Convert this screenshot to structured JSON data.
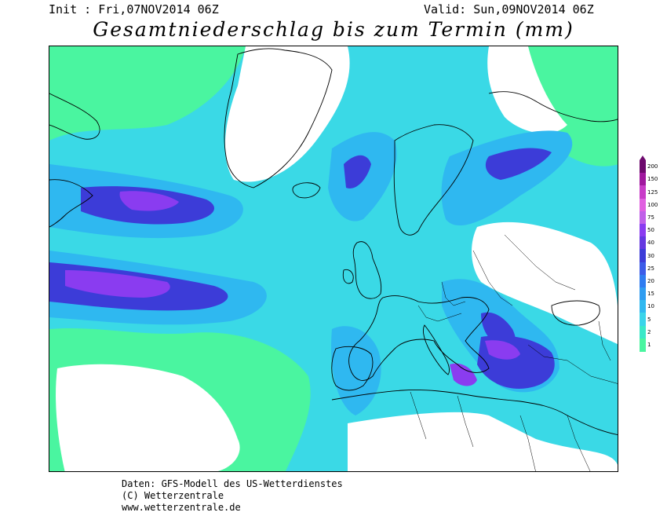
{
  "header": {
    "init": "Init : Fri,07NOV2014 06Z",
    "valid": "Valid: Sun,09NOV2014 06Z",
    "title": "Gesamtniederschlag bis zum Termin (mm)"
  },
  "legend": {
    "levels": [
      {
        "label": "200",
        "color": "#6e0a6e"
      },
      {
        "label": "150",
        "color": "#a0189e"
      },
      {
        "label": "125",
        "color": "#c83cc8"
      },
      {
        "label": "100",
        "color": "#e060e0"
      },
      {
        "label": "75",
        "color": "#c060e8"
      },
      {
        "label": "50",
        "color": "#8a3cf0"
      },
      {
        "label": "40",
        "color": "#6438e0"
      },
      {
        "label": "30",
        "color": "#3c3cd8"
      },
      {
        "label": "25",
        "color": "#3c5ce8"
      },
      {
        "label": "20",
        "color": "#2f7cf0"
      },
      {
        "label": "15",
        "color": "#2f9cf0"
      },
      {
        "label": "10",
        "color": "#2fb8f0"
      },
      {
        "label": "5",
        "color": "#3ad4ea"
      },
      {
        "label": "2",
        "color": "#3ae8c8"
      },
      {
        "label": "1",
        "color": "#4af5a0"
      }
    ]
  },
  "footer": {
    "line1": "Daten: GFS-Modell des US-Wetterdienstes",
    "line2": "(C) Wetterzentrale",
    "line3": "www.wetterzentrale.de"
  }
}
